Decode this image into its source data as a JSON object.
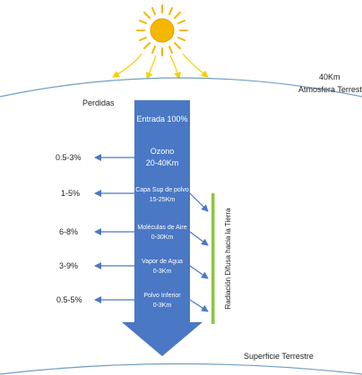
{
  "atmosphere": {
    "altitude": "40Km",
    "label": "Atmosfera Terrestre"
  },
  "losses_title": "Perdidas",
  "entry_label": "Entrada 100%",
  "layers": [
    {
      "name": "Ozono",
      "range": "20-40Km",
      "loss": "0.5-3%"
    },
    {
      "name": "Capa Sup de polvo",
      "range": "15-25Km",
      "loss": "1-5%"
    },
    {
      "name": "Moléculas de Aire",
      "range": "0-30Km",
      "loss": "6-8%"
    },
    {
      "name": "Vapor de Agua",
      "range": "0-3Km",
      "loss": "3-9%"
    },
    {
      "name": "Polvo Inferior",
      "range": "0-3Km",
      "loss": "0.5-5%"
    }
  ],
  "diffuse_label": "Radiación Difusa hacia la Tierra",
  "surface_label": "Superficie Terrestre",
  "colors": {
    "arrow_fill": "#4a78c4",
    "loss_arrow": "#4a78c4",
    "diffuse_bar": "#8cc63f",
    "sun_core": "#f5b800",
    "sun_rays": "#f5d000",
    "horizon": "#6f9fc8",
    "text": "#222222",
    "arrow_text": "#ffffff"
  }
}
